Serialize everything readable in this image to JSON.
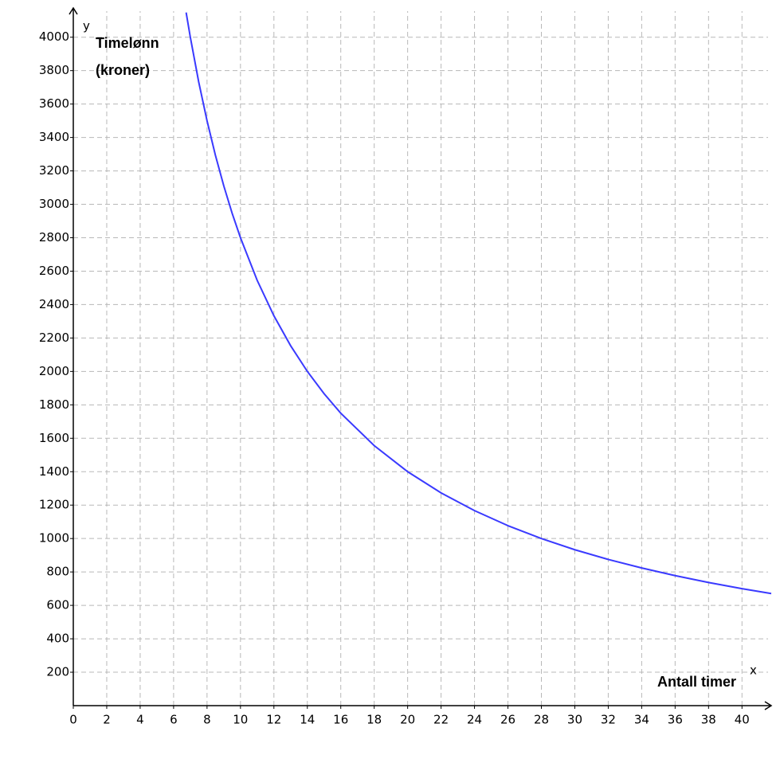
{
  "chart_data": {
    "type": "line",
    "y_axis_letter": "y",
    "x_axis_letter": "x",
    "y_label_lines": [
      "Timelønn",
      "(kroner)"
    ],
    "x_label": "Antall timer",
    "x": [
      6.75,
      7,
      7.5,
      8,
      8.5,
      9,
      9.5,
      10,
      11,
      12,
      13,
      14,
      15,
      16,
      18,
      20,
      22,
      24,
      26,
      28,
      30,
      32,
      34,
      36,
      38,
      40,
      41.75
    ],
    "series": [
      {
        "color": "#3a3aff",
        "values": [
          4148,
          4000,
          3733,
          3500,
          3294,
          3111,
          2947,
          2800,
          2545,
          2333,
          2154,
          2000,
          1867,
          1750,
          1556,
          1400,
          1273,
          1167,
          1077,
          1000,
          933,
          875,
          824,
          778,
          737,
          700,
          671
        ]
      }
    ],
    "xlim": [
      0,
      41.75
    ],
    "ylim": [
      0,
      4175
    ],
    "xticks": [
      0,
      2,
      4,
      6,
      8,
      10,
      12,
      14,
      16,
      18,
      20,
      22,
      24,
      26,
      28,
      30,
      32,
      34,
      36,
      38,
      40
    ],
    "yticks": [
      200,
      400,
      600,
      800,
      1000,
      1200,
      1400,
      1600,
      1800,
      2000,
      2200,
      2400,
      2600,
      2800,
      3000,
      3200,
      3400,
      3600,
      3800,
      4000
    ],
    "grid": true
  }
}
